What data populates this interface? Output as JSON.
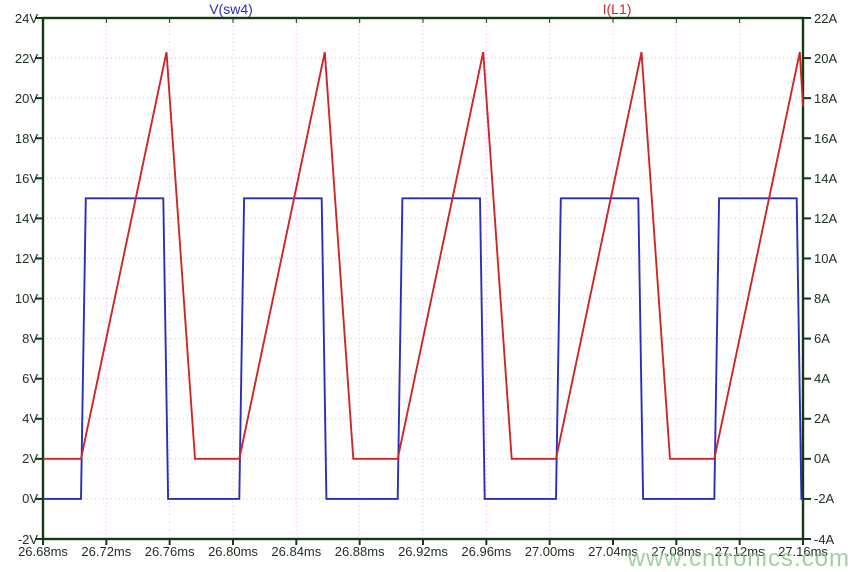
{
  "app": {
    "type": "waveform-plot-viewer"
  },
  "watermark": {
    "text": "www.cntronics.com",
    "color": "#8cc48c"
  },
  "chart_data": {
    "type": "line",
    "title": "",
    "background": "#ffffff",
    "border_color": "#123a12",
    "label_color": "#1e2f1e",
    "grid": {
      "color": "#eeb4ee",
      "style": "dotted",
      "x_step_ms": 0.04,
      "y_step": 2
    },
    "x_axis": {
      "unit": "ms",
      "min": 26.68,
      "max": 27.16,
      "tick_step": 0.04,
      "tick_labels": [
        "26.68ms",
        "26.72ms",
        "26.76ms",
        "26.80ms",
        "26.84ms",
        "26.88ms",
        "26.92ms",
        "26.96ms",
        "27.00ms",
        "27.04ms",
        "27.08ms",
        "27.12ms",
        "27.16ms"
      ]
    },
    "y_axis_left": {
      "unit": "V",
      "min": -2,
      "max": 24,
      "tick_step": 2,
      "tick_labels": [
        "24V",
        "22V",
        "20V",
        "18V",
        "16V",
        "14V",
        "12V",
        "10V",
        "8V",
        "6V",
        "4V",
        "2V",
        "0V",
        "-2V"
      ]
    },
    "y_axis_right": {
      "unit": "A",
      "min": -4,
      "max": 22,
      "tick_step": 2,
      "tick_labels": [
        "22A",
        "20A",
        "18A",
        "16A",
        "14A",
        "12A",
        "10A",
        "8A",
        "6A",
        "4A",
        "2A",
        "0A",
        "-2A",
        "-4A"
      ]
    },
    "series": [
      {
        "name": "V(sw4)",
        "axis": "left",
        "color": "#2d2dbb",
        "waveform": "square",
        "low_V": 0,
        "high_V": 15,
        "period_ms": 0.1,
        "duty_pct": 52,
        "points": [
          [
            26.68,
            0
          ],
          [
            26.704,
            0
          ],
          [
            26.707,
            15
          ],
          [
            26.756,
            15
          ],
          [
            26.759,
            0
          ],
          [
            26.804,
            0
          ],
          [
            26.807,
            15
          ],
          [
            26.856,
            15
          ],
          [
            26.859,
            0
          ],
          [
            26.904,
            0
          ],
          [
            26.907,
            15
          ],
          [
            26.956,
            15
          ],
          [
            26.959,
            0
          ],
          [
            27.004,
            0
          ],
          [
            27.007,
            15
          ],
          [
            27.056,
            15
          ],
          [
            27.059,
            0
          ],
          [
            27.104,
            0
          ],
          [
            27.107,
            15
          ],
          [
            27.156,
            15
          ],
          [
            27.159,
            0
          ],
          [
            27.16,
            0
          ]
        ]
      },
      {
        "name": "I(L1)",
        "axis": "right",
        "color": "#cc2727",
        "waveform": "triangle-ramp",
        "min_A": 0,
        "peak_A": 20.3,
        "period_ms": 0.1,
        "points": [
          [
            26.68,
            0
          ],
          [
            26.704,
            0
          ],
          [
            26.758,
            20.3
          ],
          [
            26.776,
            0
          ],
          [
            26.804,
            0
          ],
          [
            26.858,
            20.3
          ],
          [
            26.876,
            0
          ],
          [
            26.904,
            0
          ],
          [
            26.958,
            20.3
          ],
          [
            26.976,
            0
          ],
          [
            27.004,
            0
          ],
          [
            27.058,
            20.3
          ],
          [
            27.076,
            0
          ],
          [
            27.104,
            0
          ],
          [
            27.158,
            20.3
          ],
          [
            27.16,
            17.6
          ]
        ]
      }
    ]
  }
}
